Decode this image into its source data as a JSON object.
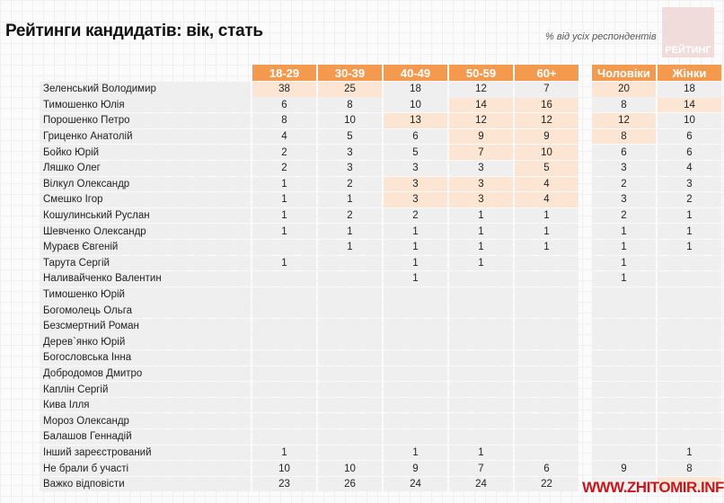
{
  "title": "Рейтинги кандидатів: вік, стать",
  "subtitle": "% від усіх респондентів",
  "logo_text": "РЕЙТИНГ",
  "watermark": "WWW.ZHITOMIR.INFO",
  "colors": {
    "header": "#f39a4f",
    "highlight": "#fce5d3",
    "cell": "#efefef"
  },
  "chart_data": {
    "type": "table",
    "title": "Рейтинги кандидатів: вік, стать",
    "columns": [
      "18-29",
      "30-39",
      "40-49",
      "50-59",
      "60+",
      "Чоловіки",
      "Жінки"
    ],
    "rows": [
      {
        "name": "Зеленський Володимир",
        "values": [
          38,
          25,
          18,
          12,
          7,
          20,
          18
        ],
        "highlight": [
          0,
          1,
          5
        ]
      },
      {
        "name": "Тимошенко Юлія",
        "values": [
          6,
          8,
          10,
          14,
          16,
          8,
          14
        ],
        "highlight": [
          3,
          4,
          6
        ]
      },
      {
        "name": "Порошенко Петро",
        "values": [
          8,
          10,
          13,
          12,
          12,
          12,
          10
        ],
        "highlight": [
          2,
          3,
          4,
          5
        ]
      },
      {
        "name": "Гриценко Анатолій",
        "values": [
          4,
          5,
          6,
          9,
          9,
          8,
          6
        ],
        "highlight": [
          3,
          4,
          5
        ]
      },
      {
        "name": "Бойко Юрій",
        "values": [
          2,
          3,
          5,
          7,
          10,
          6,
          6
        ],
        "highlight": [
          3,
          4
        ]
      },
      {
        "name": "Ляшко Олег",
        "values": [
          2,
          3,
          3,
          3,
          5,
          3,
          4
        ],
        "highlight": [
          4
        ]
      },
      {
        "name": "Вілкул Олександр",
        "values": [
          1,
          2,
          3,
          3,
          4,
          2,
          3
        ],
        "highlight": [
          2,
          3,
          4
        ]
      },
      {
        "name": "Смешко Ігор",
        "values": [
          1,
          1,
          3,
          3,
          4,
          3,
          2
        ],
        "highlight": [
          2,
          3,
          4
        ]
      },
      {
        "name": "Кошулинський Руслан",
        "values": [
          1,
          2,
          2,
          1,
          1,
          2,
          1
        ],
        "highlight": []
      },
      {
        "name": "Шевченко Олександр",
        "values": [
          1,
          1,
          1,
          1,
          1,
          1,
          1
        ],
        "highlight": []
      },
      {
        "name": "Мураєв Євгеній",
        "values": [
          null,
          1,
          1,
          1,
          1,
          1,
          1
        ],
        "highlight": []
      },
      {
        "name": "Тарута Сергій",
        "values": [
          1,
          null,
          1,
          1,
          null,
          1,
          null
        ],
        "highlight": []
      },
      {
        "name": "Наливайченко Валентин",
        "values": [
          null,
          null,
          1,
          null,
          null,
          1,
          null
        ],
        "highlight": []
      },
      {
        "name": "Тимошенко Юрій",
        "values": [
          null,
          null,
          null,
          null,
          null,
          null,
          null
        ],
        "highlight": []
      },
      {
        "name": "Богомолець Ольга",
        "values": [
          null,
          null,
          null,
          null,
          null,
          null,
          null
        ],
        "highlight": []
      },
      {
        "name": "Безсмертний Роман",
        "values": [
          null,
          null,
          null,
          null,
          null,
          null,
          null
        ],
        "highlight": []
      },
      {
        "name": "Дерев`янко Юрій",
        "values": [
          null,
          null,
          null,
          null,
          null,
          null,
          null
        ],
        "highlight": []
      },
      {
        "name": "Богословська Інна",
        "values": [
          null,
          null,
          null,
          null,
          null,
          null,
          null
        ],
        "highlight": []
      },
      {
        "name": "Добродомов Дмитро",
        "values": [
          null,
          null,
          null,
          null,
          null,
          null,
          null
        ],
        "highlight": []
      },
      {
        "name": "Каплін Сергій",
        "values": [
          null,
          null,
          null,
          null,
          null,
          null,
          null
        ],
        "highlight": []
      },
      {
        "name": "Кива Ілля",
        "values": [
          null,
          null,
          null,
          null,
          null,
          null,
          null
        ],
        "highlight": []
      },
      {
        "name": "Мороз Олександр",
        "values": [
          null,
          null,
          null,
          null,
          null,
          null,
          null
        ],
        "highlight": []
      },
      {
        "name": "Балашов Геннадій",
        "values": [
          null,
          null,
          null,
          null,
          null,
          null,
          null
        ],
        "highlight": []
      },
      {
        "name": "Інший зареєстрований",
        "values": [
          1,
          null,
          1,
          1,
          null,
          null,
          1
        ],
        "highlight": []
      },
      {
        "name": "Не брали б участі",
        "values": [
          10,
          10,
          9,
          7,
          6,
          9,
          8
        ],
        "highlight": []
      },
      {
        "name": "Важко відповісти",
        "values": [
          23,
          26,
          24,
          24,
          22,
          null,
          null
        ],
        "highlight": [
          6
        ]
      }
    ]
  }
}
